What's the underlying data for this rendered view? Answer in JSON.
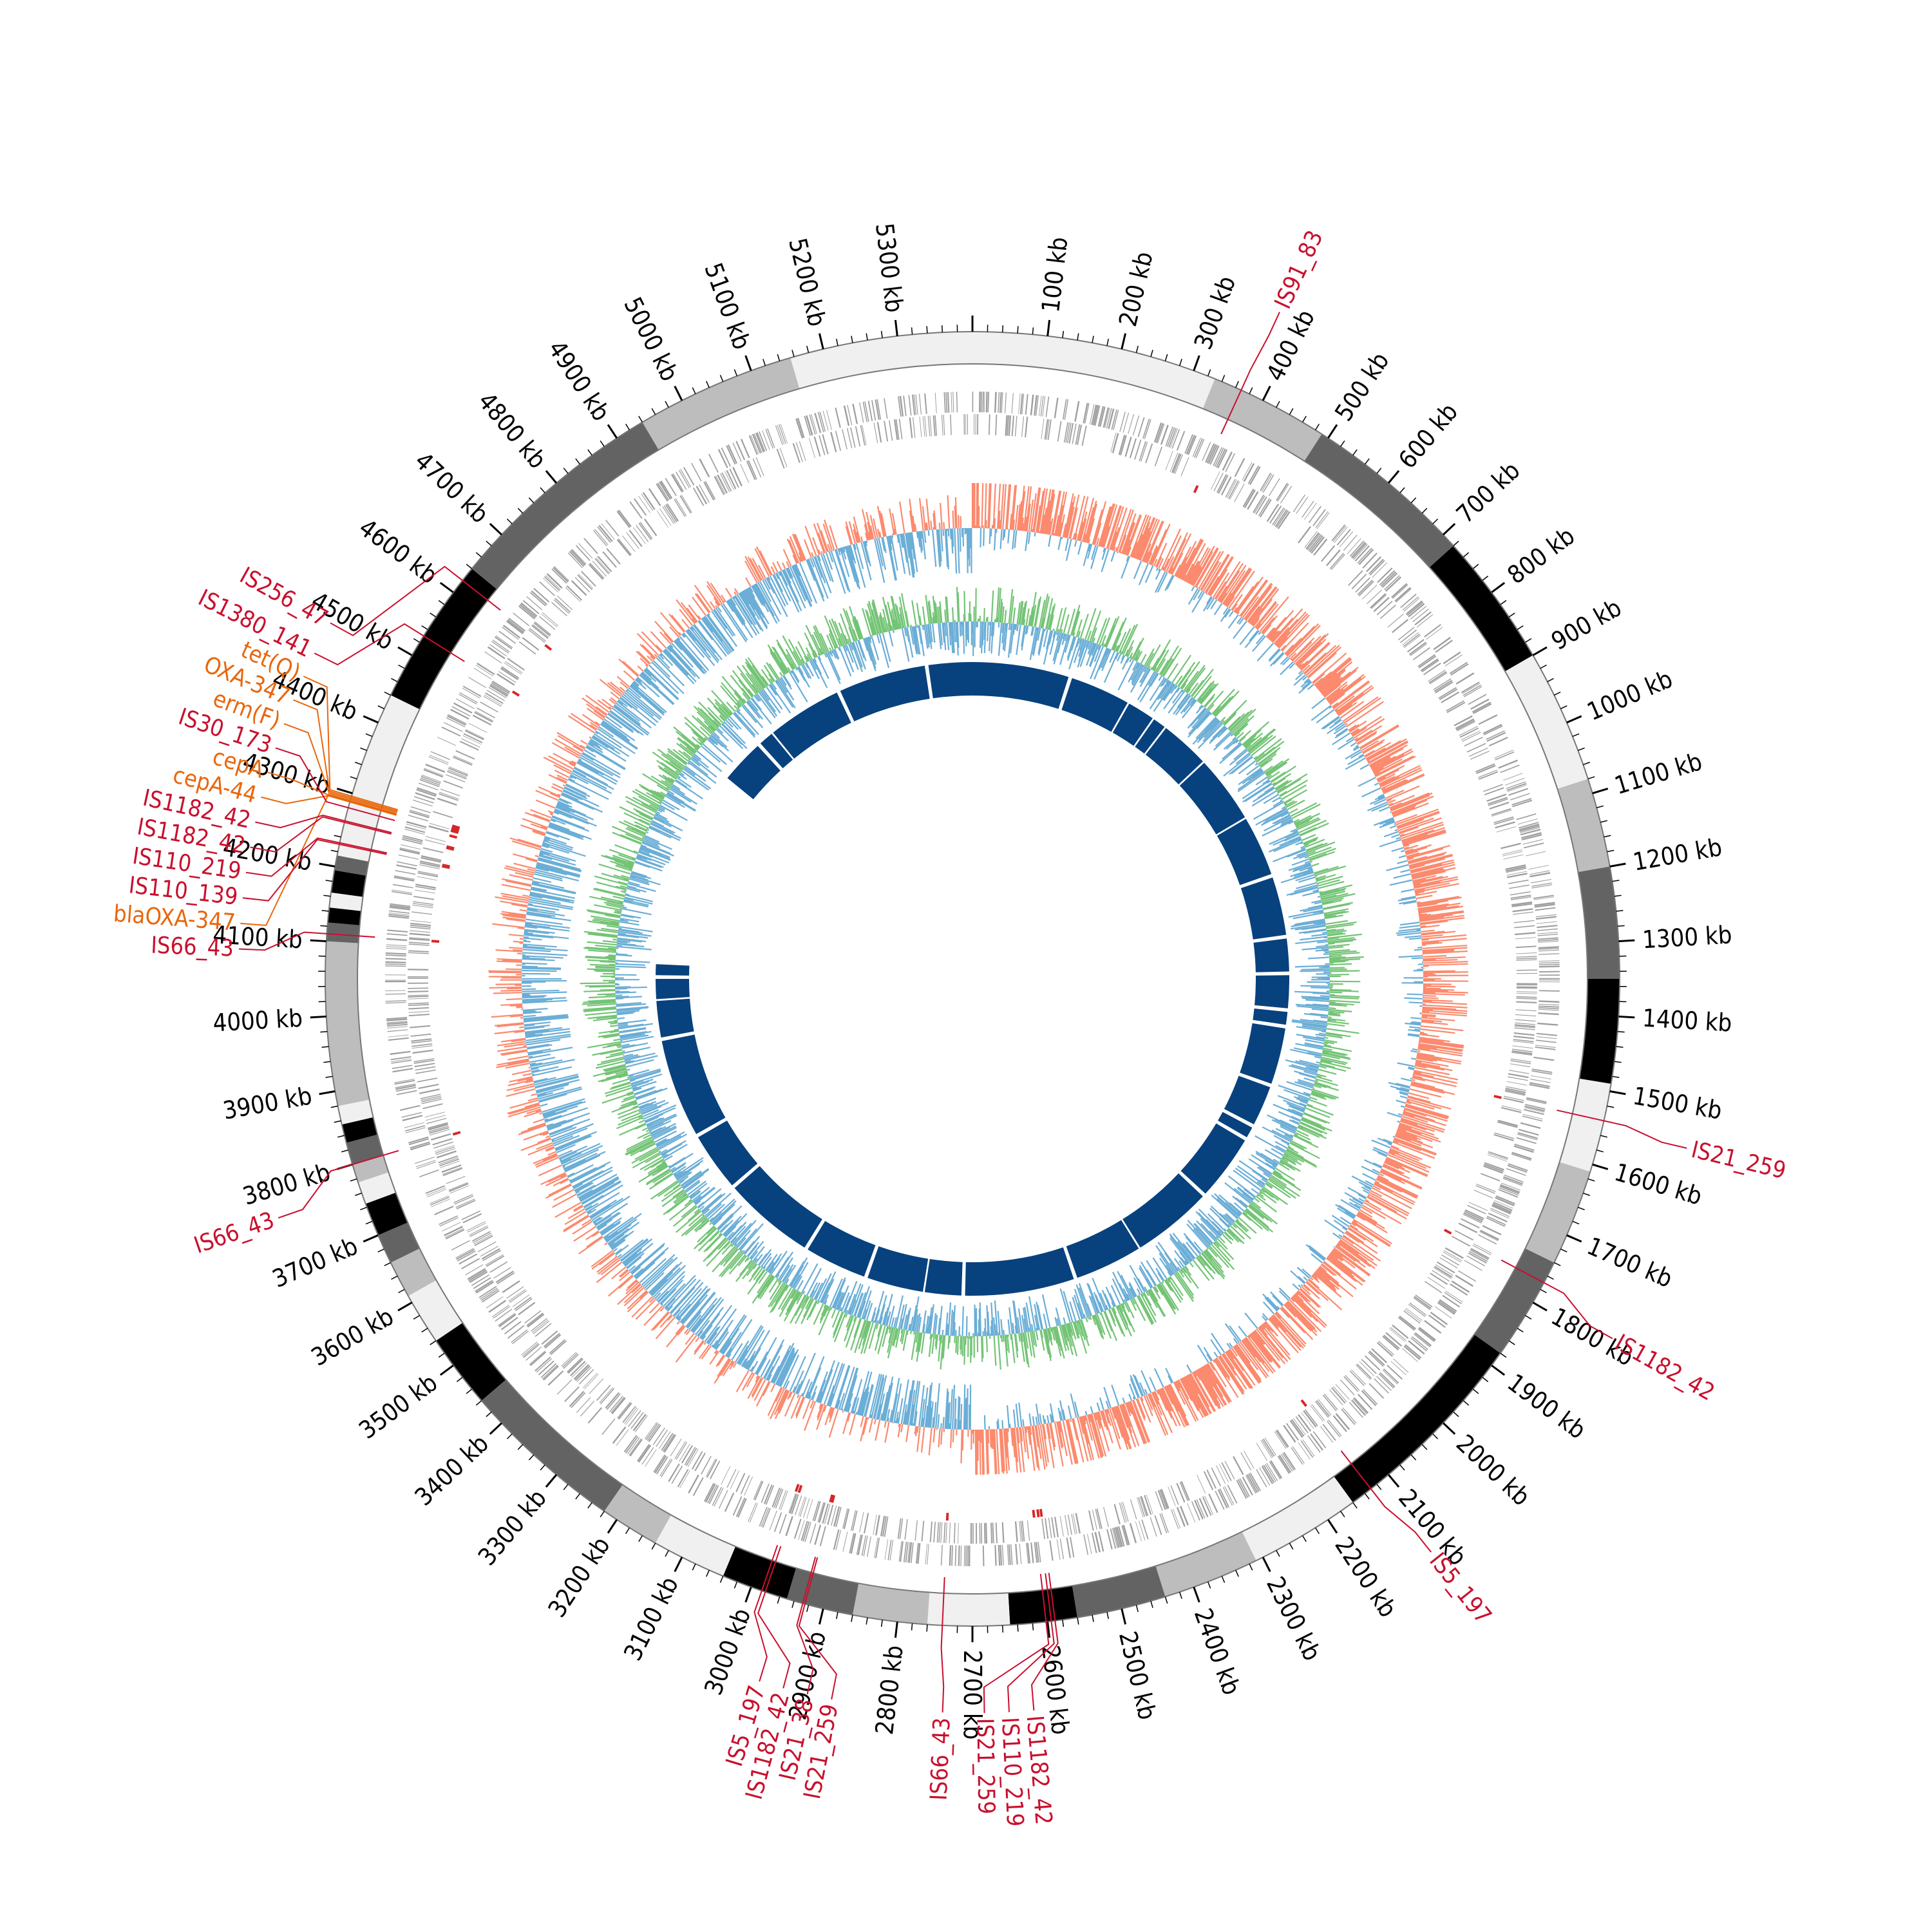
{
  "genome": {
    "length_kb": 5400,
    "position_unit": "kb"
  },
  "position_labels": [
    "100 kb",
    "200 kb",
    "300 kb",
    "400 kb",
    "500 kb",
    "600 kb",
    "700 kb",
    "800 kb",
    "900 kb",
    "1000 kb",
    "1100 kb",
    "1200 kb",
    "1300 kb",
    "1400 kb",
    "1500 kb",
    "1600 kb",
    "1700 kb",
    "1800 kb",
    "1900 kb",
    "2000 kb",
    "2100 kb",
    "2200 kb",
    "2300 kb",
    "2400 kb",
    "2500 kb",
    "2600 kb",
    "2700 kb",
    "2800 kb",
    "2900 kb",
    "3000 kb",
    "3100 kb",
    "3200 kb",
    "3300 kb",
    "3400 kb",
    "3500 kb",
    "3600 kb",
    "3700 kb",
    "3800 kb",
    "3900 kb",
    "4000 kb",
    "4100 kb",
    "4200 kb",
    "4300 kb",
    "4400 kb",
    "4500 kb",
    "4600 kb",
    "4700 kb",
    "4800 kb",
    "4900 kb",
    "5000 kb",
    "5100 kb",
    "5200 kb",
    "5300 kb"
  ],
  "contig_shades": [
    "#f0f0f0",
    "#bdbdbd",
    "#636363",
    "#000000"
  ],
  "contig_segments": [
    {
      "start": 0,
      "end": 330,
      "shade": 0
    },
    {
      "start": 330,
      "end": 490,
      "shade": 1
    },
    {
      "start": 490,
      "end": 720,
      "shade": 2
    },
    {
      "start": 720,
      "end": 900,
      "shade": 3
    },
    {
      "start": 900,
      "end": 1080,
      "shade": 0
    },
    {
      "start": 1080,
      "end": 1200,
      "shade": 1
    },
    {
      "start": 1200,
      "end": 1350,
      "shade": 2
    },
    {
      "start": 1350,
      "end": 1490,
      "shade": 3
    },
    {
      "start": 1490,
      "end": 1610,
      "shade": 0
    },
    {
      "start": 1610,
      "end": 1740,
      "shade": 1
    },
    {
      "start": 1740,
      "end": 1880,
      "shade": 2
    },
    {
      "start": 1880,
      "end": 2160,
      "shade": 3
    },
    {
      "start": 2160,
      "end": 2310,
      "shade": 0
    },
    {
      "start": 2310,
      "end": 2440,
      "shade": 1
    },
    {
      "start": 2440,
      "end": 2560,
      "shade": 2
    },
    {
      "start": 2560,
      "end": 2650,
      "shade": 3
    },
    {
      "start": 2650,
      "end": 2760,
      "shade": 0
    },
    {
      "start": 2760,
      "end": 2860,
      "shade": 1
    },
    {
      "start": 2860,
      "end": 2950,
      "shade": 2
    },
    {
      "start": 2950,
      "end": 3040,
      "shade": 3
    },
    {
      "start": 3040,
      "end": 3140,
      "shade": 0
    },
    {
      "start": 3140,
      "end": 3220,
      "shade": 1
    },
    {
      "start": 3220,
      "end": 3440,
      "shade": 2
    },
    {
      "start": 3440,
      "end": 3540,
      "shade": 3
    },
    {
      "start": 3540,
      "end": 3610,
      "shade": 0
    },
    {
      "start": 3610,
      "end": 3660,
      "shade": 1
    },
    {
      "start": 3660,
      "end": 3700,
      "shade": 2
    },
    {
      "start": 3700,
      "end": 3745,
      "shade": 3
    },
    {
      "start": 3745,
      "end": 3775,
      "shade": 0
    },
    {
      "start": 3775,
      "end": 3800,
      "shade": 1
    },
    {
      "start": 3800,
      "end": 3830,
      "shade": 2
    },
    {
      "start": 3830,
      "end": 3855,
      "shade": 3
    },
    {
      "start": 3855,
      "end": 3880,
      "shade": 0
    },
    {
      "start": 3880,
      "end": 4100,
      "shade": 1
    },
    {
      "start": 4100,
      "end": 4125,
      "shade": 2
    },
    {
      "start": 4125,
      "end": 4145,
      "shade": 3
    },
    {
      "start": 4145,
      "end": 4165,
      "shade": 0
    },
    {
      "start": 4165,
      "end": 4195,
      "shade": 3
    },
    {
      "start": 4195,
      "end": 4215,
      "shade": 2
    },
    {
      "start": 4215,
      "end": 4440,
      "shade": 0
    },
    {
      "start": 4440,
      "end": 4640,
      "shade": 3
    },
    {
      "start": 4640,
      "end": 4940,
      "shade": 2
    },
    {
      "start": 4940,
      "end": 5155,
      "shade": 1
    },
    {
      "start": 5155,
      "end": 5400,
      "shade": 0
    }
  ],
  "colors": {
    "gene_track": "#9e9e9e",
    "gene_highlight": "#d62728",
    "skew_positive": "#fb8a6e",
    "skew_negative": "#6baed6",
    "gc_positive": "#74c476",
    "gc_negative": "#6baed6",
    "alignment": "#08427e",
    "is_element": "#c8102e",
    "resistance_gene": "#e8670c"
  },
  "alignment_blocks": [
    {
      "start": 0,
      "end": 265
    },
    {
      "start": 275,
      "end": 440
    },
    {
      "start": 445,
      "end": 520
    },
    {
      "start": 525,
      "end": 560
    },
    {
      "start": 565,
      "end": 700
    },
    {
      "start": 705,
      "end": 890
    },
    {
      "start": 895,
      "end": 1060
    },
    {
      "start": 1070,
      "end": 1230
    },
    {
      "start": 1240,
      "end": 1330
    },
    {
      "start": 1340,
      "end": 1430
    },
    {
      "start": 1440,
      "end": 1475
    },
    {
      "start": 1485,
      "end": 1640
    },
    {
      "start": 1650,
      "end": 1760
    },
    {
      "start": 1770,
      "end": 1800
    },
    {
      "start": 1810,
      "end": 1990
    },
    {
      "start": 2000,
      "end": 2220
    },
    {
      "start": 2225,
      "end": 2410
    },
    {
      "start": 2420,
      "end": 2720
    },
    {
      "start": 2730,
      "end": 2830
    },
    {
      "start": 2835,
      "end": 2990
    },
    {
      "start": 3000,
      "end": 3170
    },
    {
      "start": 3180,
      "end": 3430
    },
    {
      "start": 3440,
      "end": 3600
    },
    {
      "start": 3610,
      "end": 3880
    },
    {
      "start": 3890,
      "end": 3990
    },
    {
      "start": 3995,
      "end": 4050
    },
    {
      "start": 4060,
      "end": 4090
    },
    {
      "start": 4640,
      "end": 4760
    },
    {
      "start": 4770,
      "end": 4810
    },
    {
      "start": 4815,
      "end": 5020
    },
    {
      "start": 5030,
      "end": 5270
    },
    {
      "start": 5280,
      "end": 5400
    }
  ],
  "annotations": [
    {
      "label": "IS91_83",
      "pos": 368,
      "type": "is",
      "label_pos": 371
    },
    {
      "label": "IS21_259",
      "pos": 1540,
      "type": "is",
      "label_pos": 1550
    },
    {
      "label": "IS1182_42",
      "pos": 1770,
      "type": "is",
      "label_pos": 1790
    },
    {
      "label": "IS5_197",
      "pos": 2130,
      "type": "is",
      "label_pos": 2120
    },
    {
      "label": "IS1182_42",
      "pos": 2590,
      "type": "is",
      "label_pos": 2628
    },
    {
      "label": "IS110_219",
      "pos": 2595,
      "type": "is",
      "label_pos": 2657
    },
    {
      "label": "IS21_259",
      "pos": 2602,
      "type": "is",
      "label_pos": 2686
    },
    {
      "label": "IS66_43",
      "pos": 2740,
      "type": "is",
      "label_pos": 2735
    },
    {
      "label": "IS21_259",
      "pos": 2925,
      "type": "is",
      "label_pos": 2866
    },
    {
      "label": "IS21_38",
      "pos": 2928,
      "type": "is",
      "label_pos": 2895
    },
    {
      "label": "IS1182_42",
      "pos": 2980,
      "type": "is",
      "label_pos": 2924
    },
    {
      "label": "IS5_197",
      "pos": 2985,
      "type": "is",
      "label_pos": 2953
    },
    {
      "label": "IS66_43",
      "pos": 3800,
      "type": "is",
      "label_pos": 3765
    },
    {
      "label": "IS66_43",
      "pos": 4110,
      "type": "is",
      "label_pos": 4085
    },
    {
      "label": "blaOXA-347",
      "pos": 4290,
      "type": "ar",
      "label_pos": 4115
    },
    {
      "label": "IS110_139",
      "pos": 4230,
      "type": "is",
      "label_pos": 4145
    },
    {
      "label": "IS110_219",
      "pos": 4232,
      "type": "is",
      "label_pos": 4175
    },
    {
      "label": "IS1182_42",
      "pos": 4260,
      "type": "is",
      "label_pos": 4205
    },
    {
      "label": "IS1182_42",
      "pos": 4262,
      "type": "is",
      "label_pos": 4235
    },
    {
      "label": "cepA-44",
      "pos": 4288,
      "type": "ar",
      "label_pos": 4265
    },
    {
      "label": "cepA",
      "pos": 4289,
      "type": "ar",
      "label_pos": 4295
    },
    {
      "label": "IS30_173",
      "pos": 4280,
      "type": "is",
      "label_pos": 4325
    },
    {
      "label": "erm(F)",
      "pos": 4292,
      "type": "ar",
      "label_pos": 4355
    },
    {
      "label": "OXA-347",
      "pos": 4294,
      "type": "ar",
      "label_pos": 4385
    },
    {
      "label": "tet(Q)",
      "pos": 4296,
      "type": "ar",
      "label_pos": 4415
    },
    {
      "label": "IS1380_141",
      "pos": 4530,
      "type": "is",
      "label_pos": 4445
    },
    {
      "label": "IS256_47",
      "pos": 4620,
      "type": "is",
      "label_pos": 4485
    }
  ]
}
